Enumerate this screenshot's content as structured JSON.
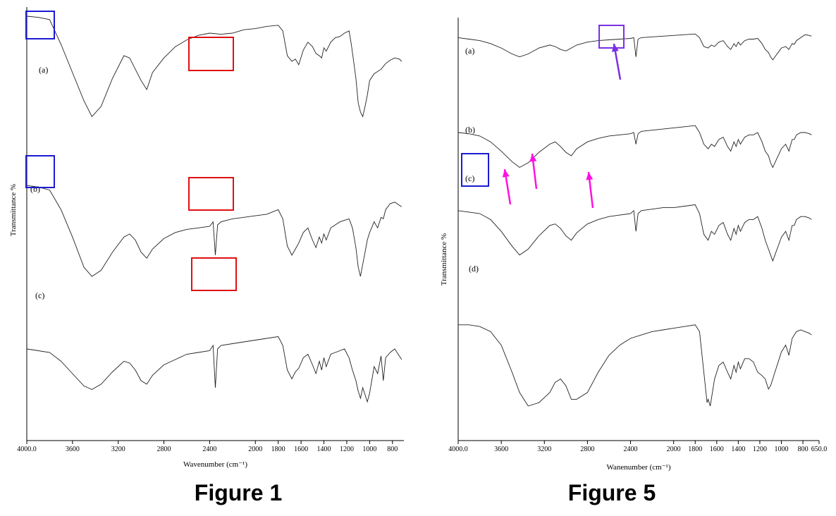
{
  "figures": [
    {
      "caption": "Figure 1",
      "chart_data": {
        "type": "line",
        "title": "",
        "xlabel": "Wavenumber (cm⁻¹)",
        "ylabel": "Transmittance %",
        "xlim": [
          4000,
          700
        ],
        "x_reversed": true,
        "x_ticks": [
          "4000.0",
          "3600",
          "3200",
          "2800",
          "2400",
          "2000",
          "1800",
          "1600",
          "1400",
          "1200",
          "1000",
          "800"
        ],
        "series": [
          {
            "name": "(a)",
            "x": [
              4000,
              3900,
              3800,
              3700,
              3600,
              3500,
              3430,
              3350,
              3250,
              3150,
              3100,
              3000,
              2950,
              2900,
              2800,
              2700,
              2600,
              2500,
              2400,
              2300,
              2200,
              2100,
              2000,
              1900,
              1800,
              1760,
              1720,
              1680,
              1650,
              1620,
              1580,
              1540,
              1500,
              1470,
              1440,
              1420,
              1400,
              1380,
              1340,
              1300,
              1260,
              1220,
              1180,
              1160,
              1140,
              1120,
              1100,
              1080,
              1060,
              1040,
              1020,
              1000,
              960,
              900,
              860,
              820,
              780,
              740,
              720
            ],
            "y": [
              95,
              94,
              92,
              70,
              45,
              20,
              6,
              15,
              40,
              60,
              58,
              38,
              30,
              45,
              58,
              68,
              74,
              78,
              80,
              79,
              80,
              83,
              84,
              86,
              87,
              82,
              60,
              55,
              57,
              52,
              65,
              72,
              68,
              62,
              60,
              58,
              67,
              64,
              72,
              76,
              77,
              80,
              82,
              70,
              55,
              40,
              18,
              10,
              6,
              15,
              25,
              38,
              44,
              48,
              53,
              56,
              58,
              57,
              55
            ]
          },
          {
            "name": "(b)",
            "x": [
              4000,
              3900,
              3800,
              3700,
              3600,
              3500,
              3430,
              3350,
              3250,
              3150,
              3100,
              3050,
              3000,
              2950,
              2900,
              2800,
              2700,
              2600,
              2500,
              2400,
              2370,
              2350,
              2330,
              2300,
              2200,
              2100,
              2000,
              1900,
              1800,
              1760,
              1720,
              1680,
              1650,
              1620,
              1580,
              1540,
              1500,
              1470,
              1440,
              1420,
              1400,
              1380,
              1340,
              1300,
              1260,
              1220,
              1180,
              1150,
              1120,
              1100,
              1080,
              1060,
              1040,
              1020,
              1000,
              960,
              930,
              900,
              880,
              860,
              820,
              780,
              740,
              720
            ],
            "y": [
              66,
              65,
              63,
              50,
              32,
              12,
              6,
              10,
              22,
              32,
              34,
              30,
              22,
              18,
              24,
              31,
              35,
              37,
              38,
              39,
              42,
              20,
              40,
              42,
              44,
              45,
              46,
              47,
              50,
              44,
              26,
              20,
              24,
              28,
              35,
              38,
              30,
              25,
              32,
              28,
              34,
              30,
              38,
              40,
              42,
              43,
              44,
              38,
              25,
              12,
              6,
              14,
              22,
              30,
              35,
              42,
              38,
              45,
              44,
              50,
              54,
              55,
              53,
              52
            ]
          },
          {
            "name": "(c)",
            "x": [
              4000,
              3900,
              3800,
              3700,
              3600,
              3500,
              3430,
              3350,
              3250,
              3150,
              3100,
              3050,
              3000,
              2950,
              2900,
              2800,
              2700,
              2600,
              2500,
              2400,
              2370,
              2350,
              2330,
              2300,
              2200,
              2100,
              2000,
              1900,
              1800,
              1760,
              1720,
              1680,
              1650,
              1620,
              1580,
              1540,
              1500,
              1470,
              1440,
              1420,
              1400,
              1380,
              1340,
              1300,
              1260,
              1220,
              1180,
              1150,
              1120,
              1100,
              1080,
              1060,
              1040,
              1020,
              1000,
              960,
              930,
              900,
              880,
              860,
              820,
              780,
              740,
              720
            ],
            "y": [
              40,
              39,
              38,
              33,
              26,
              19,
              17,
              20,
              27,
              33,
              32,
              28,
              22,
              20,
              25,
              31,
              34,
              37,
              38,
              39,
              42,
              18,
              40,
              42,
              43,
              44,
              45,
              46,
              47,
              42,
              28,
              23,
              27,
              29,
              35,
              37,
              31,
              26,
              33,
              28,
              35,
              30,
              37,
              38,
              39,
              40,
              35,
              28,
              22,
              16,
              12,
              18,
              14,
              10,
              15,
              30,
              26,
              36,
              22,
              35,
              38,
              40,
              36,
              34
            ]
          }
        ]
      },
      "labels": [
        "(a)",
        "(b)",
        "(c)"
      ]
    },
    {
      "caption": "Figure 5",
      "chart_data": {
        "type": "line",
        "title": "",
        "xlabel": "Wanenumber (cm⁻¹)",
        "ylabel": "Transmittance %",
        "xlim": [
          4000,
          650
        ],
        "x_reversed": true,
        "x_ticks": [
          "4000.0",
          "3600",
          "3200",
          "2800",
          "2400",
          "2000",
          "1800",
          "1600",
          "1400",
          "1200",
          "1000",
          "800",
          "650.0"
        ],
        "series": [
          {
            "name": "(a)",
            "x": [
              4000,
              3900,
              3800,
              3700,
              3600,
              3500,
              3430,
              3350,
              3250,
              3150,
              3100,
              3050,
              3000,
              2950,
              2900,
              2800,
              2700,
              2600,
              2500,
              2400,
              2370,
              2350,
              2330,
              2300,
              2200,
              2100,
              2000,
              1900,
              1800,
              1760,
              1720,
              1680,
              1650,
              1620,
              1580,
              1540,
              1500,
              1470,
              1440,
              1420,
              1400,
              1380,
              1340,
              1300,
              1260,
              1220,
              1180,
              1150,
              1120,
              1100,
              1080,
              1060,
              1040,
              1020,
              1000,
              960,
              930,
              900,
              880,
              860,
              820,
              780,
              740,
              720
            ],
            "y": [
              92,
              90,
              88,
              84,
              78,
              70,
              66,
              70,
              78,
              82,
              80,
              76,
              74,
              78,
              82,
              86,
              88,
              89,
              90,
              91,
              92,
              66,
              90,
              92,
              93,
              94,
              95,
              96,
              97,
              92,
              80,
              78,
              82,
              80,
              86,
              88,
              80,
              76,
              84,
              80,
              86,
              82,
              88,
              90,
              90,
              91,
              84,
              76,
              72,
              66,
              62,
              66,
              70,
              74,
              78,
              80,
              76,
              84,
              83,
              88,
              92,
              96,
              95,
              94
            ]
          },
          {
            "name": "(b)",
            "x": [
              4000,
              3900,
              3800,
              3700,
              3600,
              3500,
              3430,
              3350,
              3250,
              3150,
              3100,
              3050,
              3000,
              2950,
              2900,
              2800,
              2700,
              2600,
              2500,
              2400,
              2370,
              2350,
              2330,
              2300,
              2200,
              2100,
              2000,
              1900,
              1800,
              1760,
              1720,
              1680,
              1650,
              1620,
              1580,
              1540,
              1500,
              1470,
              1440,
              1420,
              1400,
              1380,
              1340,
              1300,
              1260,
              1220,
              1180,
              1150,
              1120,
              1100,
              1080,
              1060,
              1040,
              1020,
              1000,
              960,
              930,
              900,
              880,
              860,
              820,
              780,
              740,
              720
            ],
            "y": [
              80,
              79,
              77,
              72,
              64,
              55,
              50,
              54,
              63,
              70,
              72,
              68,
              63,
              60,
              66,
              72,
              75,
              77,
              78,
              79,
              80,
              70,
              79,
              81,
              82,
              83,
              84,
              85,
              86,
              80,
              70,
              66,
              70,
              68,
              74,
              76,
              68,
              64,
              72,
              68,
              74,
              70,
              76,
              78,
              78,
              80,
              72,
              64,
              60,
              54,
              50,
              54,
              58,
              62,
              66,
              70,
              64,
              74,
              74,
              78,
              80,
              80,
              79,
              78
            ]
          },
          {
            "name": "(c)",
            "x": [
              4000,
              3900,
              3800,
              3700,
              3600,
              3500,
              3430,
              3350,
              3250,
              3150,
              3100,
              3050,
              3000,
              2950,
              2900,
              2800,
              2700,
              2600,
              2500,
              2400,
              2370,
              2350,
              2330,
              2300,
              2200,
              2100,
              2000,
              1900,
              1800,
              1760,
              1720,
              1680,
              1650,
              1620,
              1580,
              1540,
              1500,
              1470,
              1440,
              1420,
              1400,
              1380,
              1340,
              1300,
              1260,
              1220,
              1180,
              1150,
              1120,
              1100,
              1080,
              1060,
              1040,
              1020,
              1000,
              960,
              930,
              900,
              880,
              860,
              820,
              780,
              740,
              720
            ],
            "y": [
              72,
              71,
              70,
              66,
              58,
              48,
              42,
              46,
              55,
              62,
              63,
              60,
              55,
              52,
              57,
              63,
              66,
              68,
              69,
              70,
              72,
              58,
              70,
              72,
              73,
              74,
              74,
              75,
              76,
              70,
              56,
              52,
              58,
              56,
              62,
              64,
              56,
              52,
              60,
              56,
              62,
              58,
              64,
              66,
              66,
              68,
              60,
              52,
              46,
              42,
              38,
              42,
              46,
              50,
              54,
              58,
              52,
              62,
              62,
              66,
              68,
              68,
              67,
              66
            ]
          },
          {
            "name": "(d)",
            "x": [
              4000,
              3900,
              3800,
              3700,
              3600,
              3500,
              3430,
              3350,
              3250,
              3150,
              3100,
              3050,
              3000,
              2950,
              2900,
              2800,
              2700,
              2600,
              2500,
              2400,
              2300,
              2200,
              2100,
              2000,
              1900,
              1800,
              1760,
              1720,
              1690,
              1680,
              1660,
              1620,
              1580,
              1540,
              1500,
              1470,
              1440,
              1420,
              1400,
              1380,
              1340,
              1300,
              1260,
              1220,
              1180,
              1150,
              1120,
              1100,
              1080,
              1060,
              1040,
              1020,
              1000,
              960,
              930,
              900,
              880,
              860,
              820,
              780,
              740,
              720
            ],
            "y": [
              58,
              58,
              57,
              54,
              46,
              30,
              18,
              10,
              12,
              18,
              24,
              26,
              22,
              14,
              14,
              18,
              30,
              40,
              46,
              50,
              52,
              54,
              55,
              56,
              57,
              58,
              54,
              30,
              12,
              14,
              10,
              26,
              34,
              36,
              30,
              26,
              34,
              30,
              36,
              32,
              38,
              38,
              36,
              30,
              28,
              26,
              20,
              22,
              26,
              30,
              34,
              38,
              42,
              46,
              40,
              50,
              52,
              54,
              55,
              54,
              53,
              52
            ]
          }
        ]
      },
      "labels": [
        "(a)",
        "(b)",
        "(c)",
        "(d)"
      ]
    }
  ]
}
